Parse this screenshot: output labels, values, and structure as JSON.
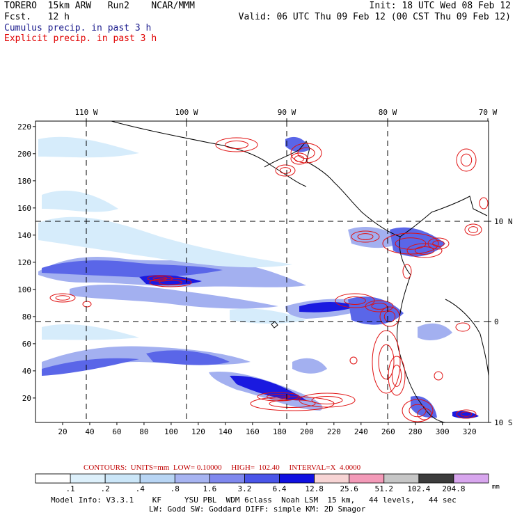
{
  "header": {
    "model": "TORERO  15km ARW   Run2    NCAR/MMM",
    "forecast": "Fcst.   12 h",
    "init": "Init: 18 UTC Wed 08 Feb 12",
    "valid": "Valid: 06 UTC Thu 09 Feb 12 (00 CST Thu 09 Feb 12)",
    "cumulus_label": "Cumulus precip. in past 3 h",
    "explicit_label": "Explicit precip. in past 3 h"
  },
  "colors": {
    "cumulus": "#1a1a8c",
    "explicit": "#e00000",
    "contour": "#e01010"
  },
  "chart_data": {
    "type": "heatmap",
    "x_ticks": [
      "20",
      "40",
      "60",
      "80",
      "100",
      "120",
      "140",
      "160",
      "180",
      "200",
      "220",
      "240",
      "260",
      "280",
      "300",
      "320"
    ],
    "y_ticks": [
      "20",
      "40",
      "60",
      "80",
      "100",
      "120",
      "140",
      "160",
      "180",
      "200",
      "220"
    ],
    "lon_labels": [
      "110 W",
      "100 W",
      "90 W",
      "80 W",
      "70 W"
    ],
    "lat_labels": [
      "10 N",
      "0",
      "10 S"
    ],
    "xlim": [
      0,
      334
    ],
    "ylim": [
      2,
      224
    ],
    "units": "mm",
    "contours": {
      "label": "CONTOURS:  UNITS=mm  LOW= 0.10000     HIGH=  102.40     INTERVAL=X  4.0000",
      "low": 0.1,
      "high": 102.4,
      "interval_factor": 4.0
    },
    "legend_levels": [
      ".1",
      ".2",
      ".4",
      ".8",
      "1.6",
      "3.2",
      "6.4",
      "12.8",
      "25.6",
      "51.2",
      "102.4",
      "204.8"
    ],
    "legend_unit": "mm",
    "legend_colors": [
      "#ffffff",
      "#eef7fd",
      "#ddf0fb",
      "#cbe6f8",
      "#b8d5f4",
      "#a7b4f1",
      "#7f88ee",
      "#4a55e8",
      "#1010e0",
      "#f7d4d4",
      "#f39ab8",
      "#c6c6c6",
      "#3c3c3c",
      "#d8a6ee"
    ]
  },
  "footer": {
    "line1": "Model Info: V3.3.1    KF     YSU PBL  WDM 6class  Noah LSM  15 km,   44 levels,   44 sec",
    "line2": "LW: Godd SW: Goddard DIFF: simple KM: 2D Smagor"
  }
}
